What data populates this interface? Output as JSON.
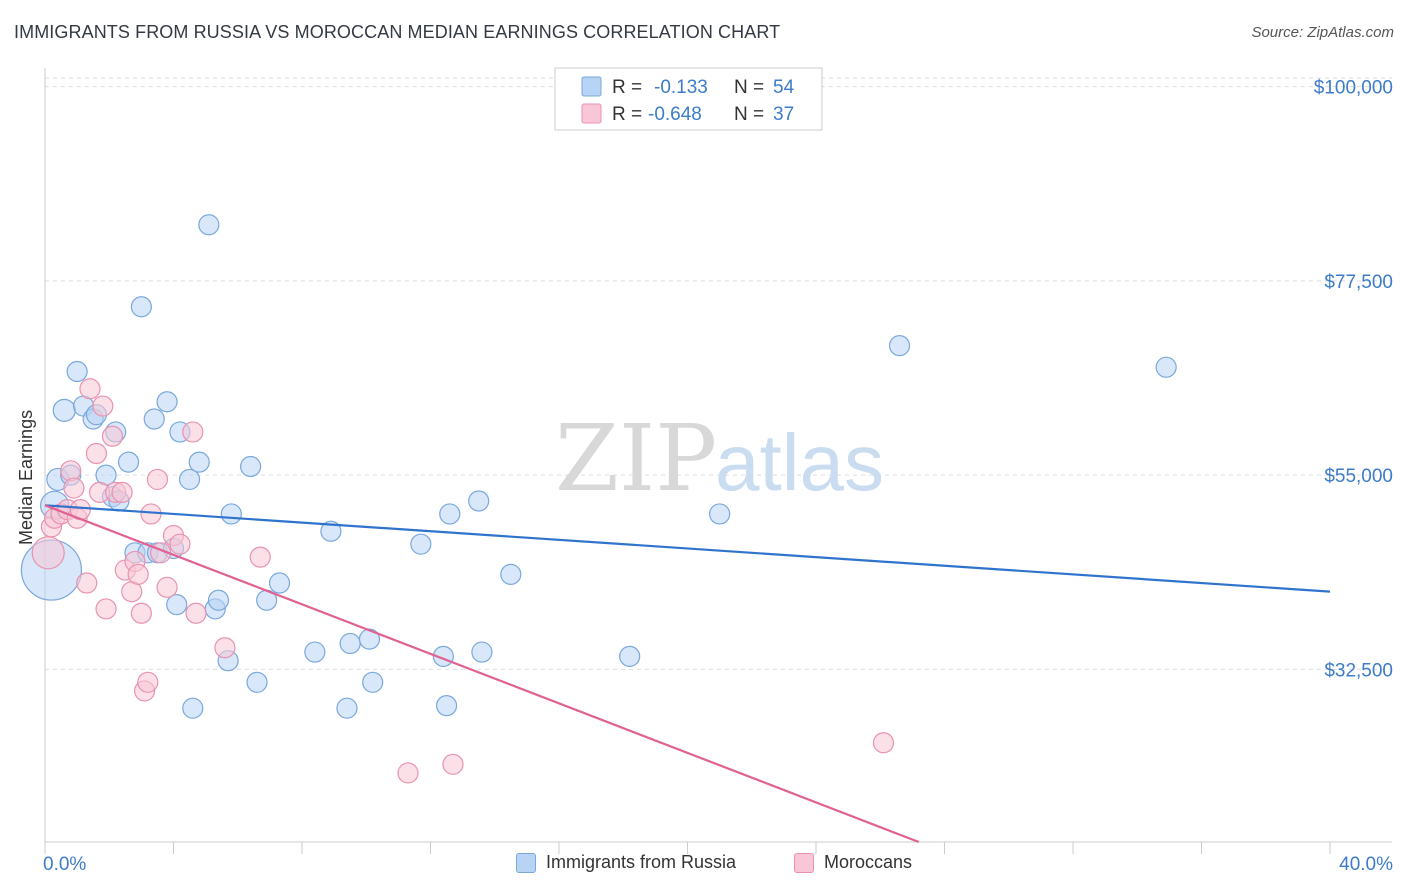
{
  "header": {
    "title": "IMMIGRANTS FROM RUSSIA VS MOROCCAN MEDIAN EARNINGS CORRELATION CHART",
    "source": "Source: ZipAtlas.com"
  },
  "watermark": {
    "zip": "ZIP",
    "atlas": "atlas"
  },
  "colors": {
    "blue_fill": "#b8d4f4",
    "blue_stroke": "#7aa8dc",
    "blue_line": "#2f73cc",
    "pink_fill": "#f8c6d6",
    "pink_stroke": "#e892b0",
    "pink_line": "#e06292",
    "tick_text": "#3d7cc9",
    "grid": "#dddddd"
  },
  "legend_top": [
    {
      "r_label": "R =",
      "r_value": "-0.133",
      "n_label": "N =",
      "n_value": "54"
    },
    {
      "r_label": "R =",
      "r_value": "-0.648",
      "n_label": "N =",
      "n_value": "37"
    }
  ],
  "chart_data": {
    "type": "scatter",
    "title": "IMMIGRANTS FROM RUSSIA VS MOROCCAN MEDIAN EARNINGS CORRELATION CHART",
    "xlabel": "",
    "ylabel": "Median Earnings",
    "xlim": [
      0,
      40
    ],
    "ylim": [
      12500,
      101000
    ],
    "x_tick_labels": [
      "0.0%",
      "40.0%"
    ],
    "y_ticks": [
      32500,
      55000,
      77500,
      100000
    ],
    "y_tick_labels": [
      "$32,500",
      "$55,000",
      "$77,500",
      "$100,000"
    ],
    "grid": true,
    "legend_position": "top-center",
    "series": [
      {
        "name": "Immigrants from Russia",
        "r": -0.133,
        "n": 54,
        "trend": [
          [
            0.0,
            51500
          ],
          [
            40.0,
            41500
          ]
        ],
        "points": [
          [
            0.2,
            44,
            30
          ],
          [
            0.3,
            51.5,
            14
          ],
          [
            0.4,
            54.5,
            11
          ],
          [
            0.6,
            62.5,
            11
          ],
          [
            0.8,
            55,
            10
          ],
          [
            1.0,
            67,
            10
          ],
          [
            1.2,
            63,
            10
          ],
          [
            1.5,
            61.5,
            10
          ],
          [
            1.6,
            62,
            10
          ],
          [
            1.9,
            55,
            10
          ],
          [
            2.1,
            52.5,
            10
          ],
          [
            2.2,
            60,
            10
          ],
          [
            2.3,
            52,
            10
          ],
          [
            2.6,
            56.5,
            10
          ],
          [
            2.8,
            46,
            10
          ],
          [
            3.0,
            74.5,
            10
          ],
          [
            3.2,
            46,
            10
          ],
          [
            3.4,
            61.5,
            10
          ],
          [
            3.5,
            46,
            10
          ],
          [
            3.8,
            63.5,
            10
          ],
          [
            4.0,
            46.5,
            10
          ],
          [
            4.1,
            40,
            10
          ],
          [
            4.2,
            60,
            10
          ],
          [
            4.5,
            54.5,
            10
          ],
          [
            4.6,
            28,
            10
          ],
          [
            4.8,
            56.5,
            10
          ],
          [
            5.1,
            84,
            10
          ],
          [
            5.3,
            39.5,
            10
          ],
          [
            5.4,
            40.5,
            10
          ],
          [
            5.7,
            33.5,
            10
          ],
          [
            5.8,
            50.5,
            10
          ],
          [
            6.4,
            56,
            10
          ],
          [
            6.6,
            31,
            10
          ],
          [
            6.9,
            40.5,
            10
          ],
          [
            7.3,
            42.5,
            10
          ],
          [
            8.4,
            34.5,
            10
          ],
          [
            8.9,
            48.5,
            10
          ],
          [
            9.4,
            28,
            10
          ],
          [
            9.5,
            35.5,
            10
          ],
          [
            10.1,
            36,
            10
          ],
          [
            10.2,
            31,
            10
          ],
          [
            11.7,
            47,
            10
          ],
          [
            12.4,
            34,
            10
          ],
          [
            12.5,
            28.3,
            10
          ],
          [
            12.6,
            50.5,
            10
          ],
          [
            13.5,
            52,
            10
          ],
          [
            13.6,
            34.5,
            10
          ],
          [
            14.5,
            43.5,
            10
          ],
          [
            18.2,
            34,
            10
          ],
          [
            21.0,
            50.5,
            10
          ],
          [
            26.6,
            70,
            10
          ],
          [
            34.9,
            67.5,
            10
          ]
        ]
      },
      {
        "name": "Moroccans",
        "r": -0.648,
        "n": 37,
        "trend": [
          [
            0.0,
            51500
          ],
          [
            27.2,
            12500
          ]
        ],
        "points": [
          [
            0.1,
            46,
            16
          ],
          [
            0.2,
            49,
            10
          ],
          [
            0.3,
            50,
            10
          ],
          [
            0.5,
            50.5,
            10
          ],
          [
            0.7,
            51,
            10
          ],
          [
            0.8,
            55.5,
            10
          ],
          [
            0.9,
            53.5,
            10
          ],
          [
            1.0,
            50,
            10
          ],
          [
            1.1,
            51,
            10
          ],
          [
            1.3,
            42.5,
            10
          ],
          [
            1.4,
            65,
            10
          ],
          [
            1.6,
            57.5,
            10
          ],
          [
            1.7,
            53,
            10
          ],
          [
            1.8,
            63,
            10
          ],
          [
            1.9,
            39.5,
            10
          ],
          [
            2.1,
            59.5,
            10
          ],
          [
            2.2,
            53,
            10
          ],
          [
            2.4,
            53,
            10
          ],
          [
            2.5,
            44,
            10
          ],
          [
            2.7,
            41.5,
            10
          ],
          [
            2.8,
            45,
            10
          ],
          [
            2.9,
            43.5,
            10
          ],
          [
            3.0,
            39,
            10
          ],
          [
            3.1,
            30,
            10
          ],
          [
            3.2,
            31,
            10
          ],
          [
            3.3,
            50.5,
            10
          ],
          [
            3.5,
            54.5,
            10
          ],
          [
            3.6,
            46,
            10
          ],
          [
            3.8,
            42,
            10
          ],
          [
            4.0,
            48,
            10
          ],
          [
            4.2,
            47,
            10
          ],
          [
            4.6,
            60,
            10
          ],
          [
            4.7,
            39,
            10
          ],
          [
            5.6,
            35,
            10
          ],
          [
            6.7,
            45.5,
            10
          ],
          [
            11.3,
            20.5,
            10
          ],
          [
            12.7,
            21.5,
            10
          ],
          [
            26.1,
            24,
            10
          ]
        ]
      }
    ]
  },
  "legend_bottom": [
    "Immigrants from Russia",
    "Moroccans"
  ]
}
